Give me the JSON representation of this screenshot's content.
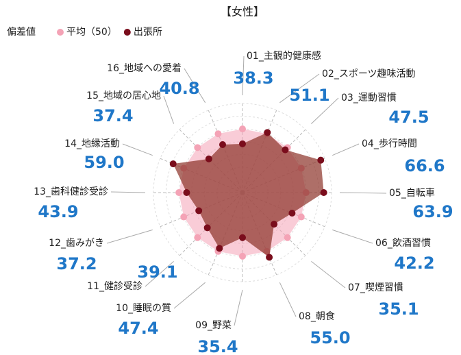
{
  "chart_data": {
    "type": "radar",
    "title": "【女性】",
    "legend_title": "偏差値",
    "categories": [
      "01_主観的健康感",
      "02_スポーツ趣味活動",
      "03_運動習慣",
      "04_歩行時間",
      "05_自転車",
      "06_飲酒習慣",
      "07_喫煙習慣",
      "08_朝食",
      "09_野菜",
      "10_睡眠の質",
      "11_健診受診",
      "12_歯みがき",
      "13_歯科健診受診",
      "14_地縁活動",
      "15_地域の居心地",
      "16_地域への愛着"
    ],
    "series": [
      {
        "name": "平均（50）",
        "color": "#f4a3b6",
        "values": [
          50,
          50,
          50,
          50,
          50,
          50,
          50,
          50,
          50,
          50,
          50,
          50,
          50,
          50,
          50,
          50
        ]
      },
      {
        "name": "出張所",
        "color": "#7a0d1c",
        "values": [
          38.3,
          51.1,
          47.5,
          66.6,
          63.9,
          42.2,
          35.1,
          55.0,
          35.4,
          47.4,
          39.1,
          37.2,
          43.9,
          59.0,
          37.4,
          40.8
        ],
        "value_labels": [
          "38.3",
          "51.1",
          "47.5",
          "66.6",
          "63.9",
          "42.2",
          "35.1",
          "55.0",
          "35.4",
          "47.4",
          "39.1",
          "37.2",
          "43.9",
          "59.0",
          "37.4",
          "40.8"
        ]
      }
    ],
    "rlim": [
      0,
      70
    ],
    "rticks": [
      10,
      20,
      30,
      40,
      50,
      60,
      70
    ]
  }
}
